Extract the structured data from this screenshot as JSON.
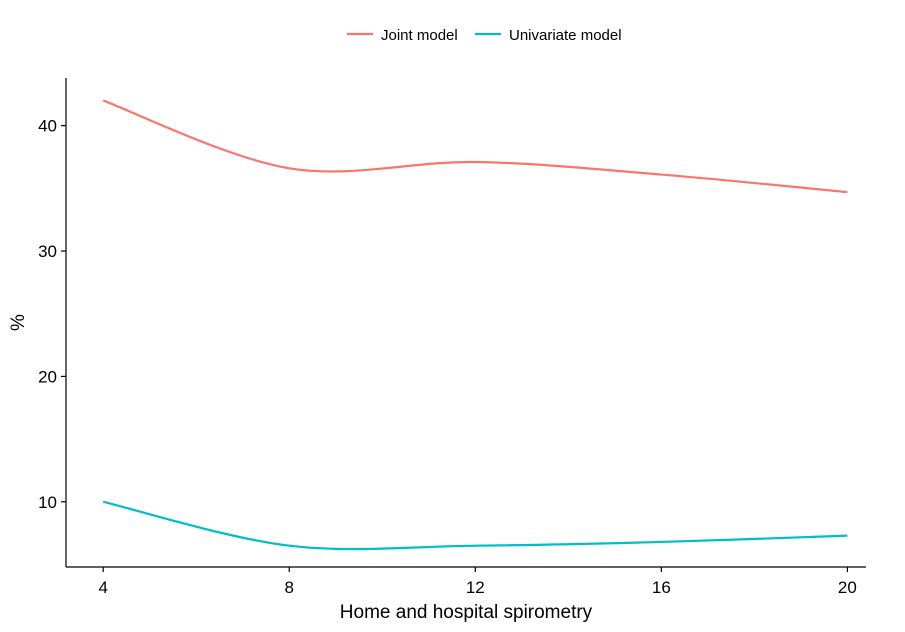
{
  "chart_data": {
    "type": "line",
    "title": "",
    "xlabel": "Home and hospital spirometry",
    "ylabel": "%",
    "x": [
      4,
      8,
      12,
      16,
      20
    ],
    "xticks": [
      4,
      8,
      12,
      16,
      20
    ],
    "yticks": [
      10,
      20,
      30,
      40
    ],
    "xlim": [
      3.2,
      20.4
    ],
    "ylim": [
      4.8,
      43.8
    ],
    "grid": false,
    "legend_position": "top",
    "series": [
      {
        "name": "Joint model",
        "color": "#F8766D",
        "values": [
          42.0,
          36.6,
          37.1,
          36.1,
          34.7
        ]
      },
      {
        "name": "Univariate model",
        "color": "#00BFC4",
        "values": [
          10.0,
          6.5,
          6.5,
          6.8,
          7.3
        ]
      }
    ]
  }
}
